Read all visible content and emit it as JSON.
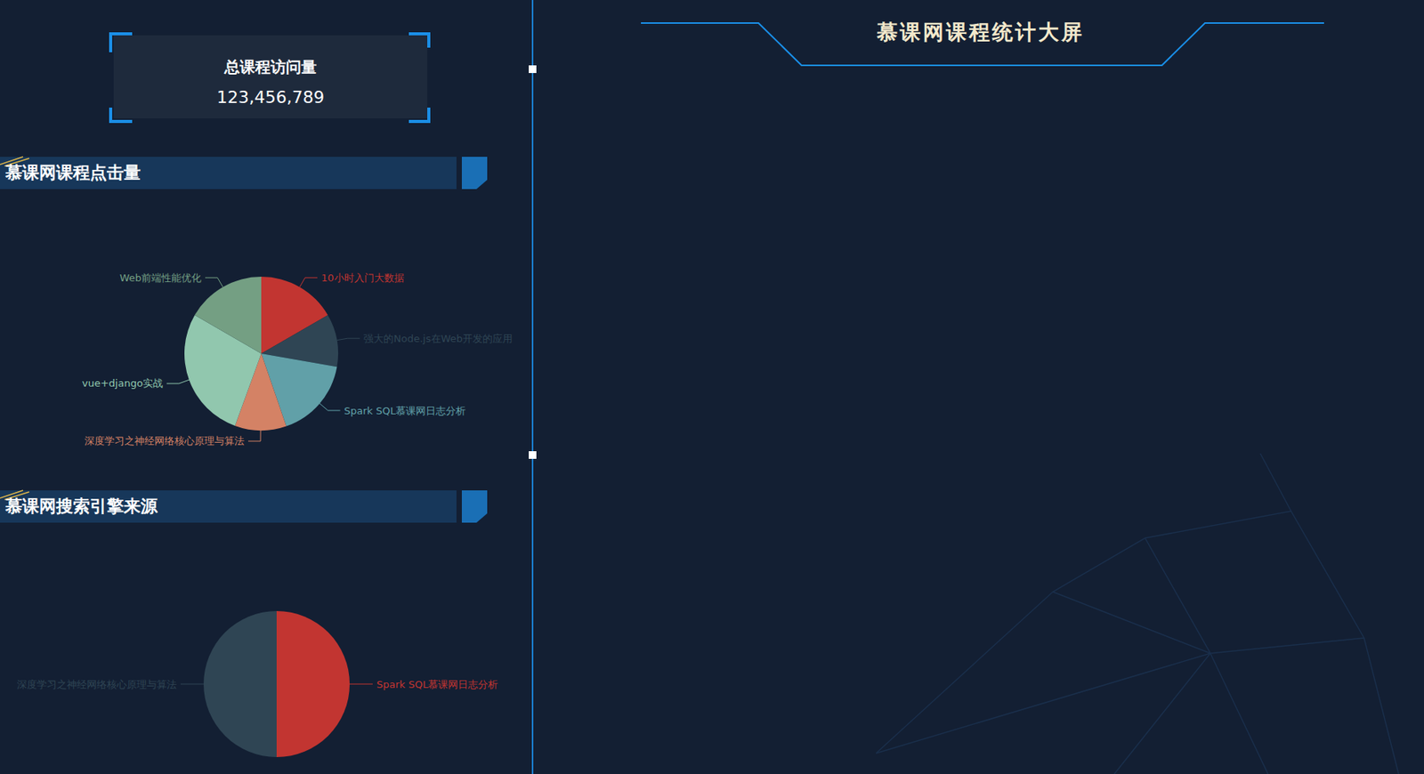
{
  "header": {
    "title": "慕课网课程统计大屏"
  },
  "stat": {
    "title": "总课程访问量",
    "value": "123,456,789"
  },
  "chart_data": [
    {
      "type": "pie",
      "title": "慕课网课程点击量",
      "categories": [
        "10小时入门大数据",
        "强大的Node.js在Web开发的应用",
        "Spark SQL慕课网日志分析",
        "深度学习之神经网络核心原理与算法",
        "vue+django实战",
        "Web前端性能优化"
      ],
      "values": [
        60,
        40,
        61,
        39,
        100,
        60
      ],
      "colors": [
        "#c23531",
        "#2f4554",
        "#61a0a8",
        "#d48265",
        "#91c7ae",
        "#749f83"
      ]
    },
    {
      "type": "pie",
      "title": "慕课网搜索引擎来源",
      "categories": [
        "Spark SQL慕课网日志分析",
        "深度学习之神经网络核心原理与算法"
      ],
      "values": [
        50,
        50
      ],
      "colors": [
        "#c23531",
        "#2f4554"
      ]
    }
  ]
}
